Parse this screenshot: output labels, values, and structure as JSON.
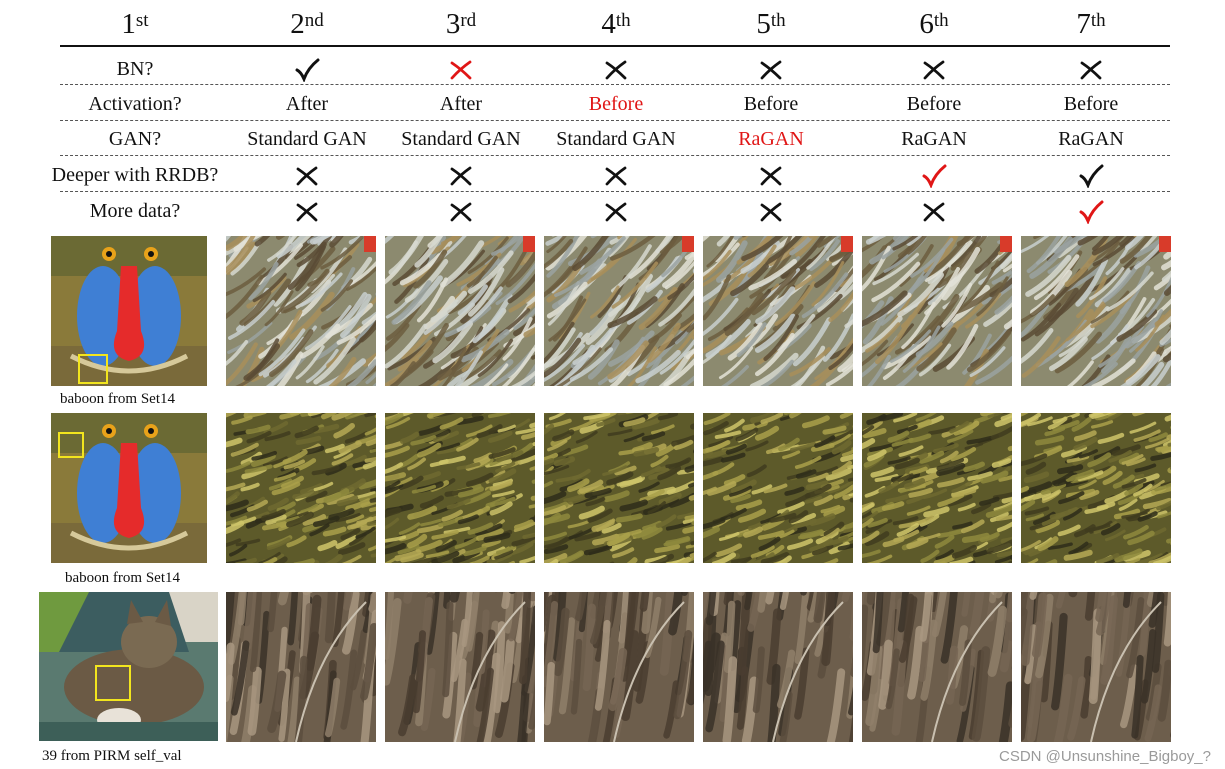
{
  "columns": [
    {
      "num": "1",
      "suffix": "st"
    },
    {
      "num": "2",
      "suffix": "nd"
    },
    {
      "num": "3",
      "suffix": "rd"
    },
    {
      "num": "4",
      "suffix": "th"
    },
    {
      "num": "5",
      "suffix": "th"
    },
    {
      "num": "6",
      "suffix": "th"
    },
    {
      "num": "7",
      "suffix": "th"
    }
  ],
  "rows": [
    {
      "label": "BN?",
      "cells": [
        {
          "type": "check",
          "color": "#111111"
        },
        {
          "type": "cross",
          "color": "#e01616"
        },
        {
          "type": "cross",
          "color": "#111111"
        },
        {
          "type": "cross",
          "color": "#111111"
        },
        {
          "type": "cross",
          "color": "#111111"
        },
        {
          "type": "cross",
          "color": "#111111"
        }
      ]
    },
    {
      "label": "Activation?",
      "cells": [
        {
          "type": "text",
          "text": "After"
        },
        {
          "type": "text",
          "text": "After"
        },
        {
          "type": "text",
          "text": "Before",
          "red": true
        },
        {
          "type": "text",
          "text": "Before"
        },
        {
          "type": "text",
          "text": "Before"
        },
        {
          "type": "text",
          "text": "Before"
        }
      ]
    },
    {
      "label": "GAN?",
      "cells": [
        {
          "type": "text",
          "text": "Standard GAN"
        },
        {
          "type": "text",
          "text": "Standard GAN"
        },
        {
          "type": "text",
          "text": "Standard GAN"
        },
        {
          "type": "text",
          "text": "RaGAN",
          "red": true
        },
        {
          "type": "text",
          "text": "RaGAN"
        },
        {
          "type": "text",
          "text": "RaGAN"
        }
      ]
    },
    {
      "label": "Deeper with RRDB?",
      "cells": [
        {
          "type": "cross",
          "color": "#111111"
        },
        {
          "type": "cross",
          "color": "#111111"
        },
        {
          "type": "cross",
          "color": "#111111"
        },
        {
          "type": "cross",
          "color": "#111111"
        },
        {
          "type": "check",
          "color": "#e01616"
        },
        {
          "type": "check",
          "color": "#111111"
        }
      ]
    },
    {
      "label": "More data?",
      "cells": [
        {
          "type": "cross",
          "color": "#111111"
        },
        {
          "type": "cross",
          "color": "#111111"
        },
        {
          "type": "cross",
          "color": "#111111"
        },
        {
          "type": "cross",
          "color": "#111111"
        },
        {
          "type": "cross",
          "color": "#111111"
        },
        {
          "type": "check",
          "color": "#e01616"
        }
      ]
    }
  ],
  "image_rows": [
    {
      "caption": "baboon from Set14",
      "source": "baboon",
      "texture": "fur-gray"
    },
    {
      "caption": "baboon from Set14",
      "source": "baboon",
      "texture": "fur-green"
    },
    {
      "caption": "39 from PIRM self_val",
      "source": "cat",
      "texture": "fur-brown"
    }
  ],
  "watermark": "CSDN @Unsunshine_Bigboy_?"
}
